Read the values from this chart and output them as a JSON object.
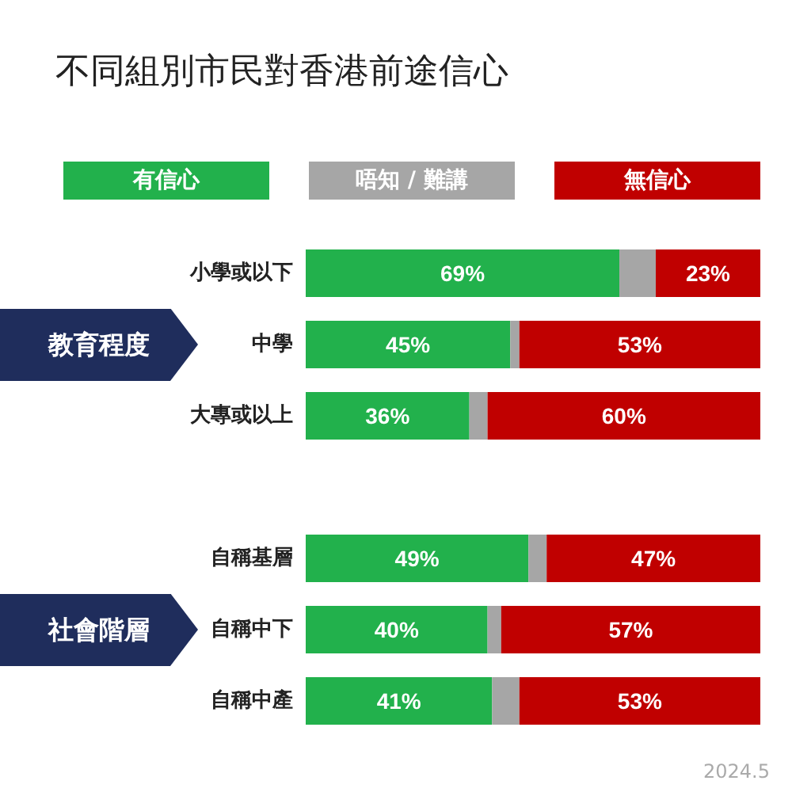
{
  "chart_data": {
    "type": "bar",
    "orientation": "horizontal",
    "stacked": true,
    "title": "不同組別市民對香港前途信心",
    "categories": [
      "小學或以下",
      "中學",
      "大專或以上",
      null,
      "自稱基層",
      "自稱中下",
      "自稱中產"
    ],
    "series": [
      {
        "name": "有信心",
        "color": "#22b14c",
        "values": [
          69,
          45,
          36,
          null,
          49,
          40,
          41
        ],
        "value_labels": [
          "69%",
          "45%",
          "36%",
          null,
          "49%",
          "40%",
          "41%"
        ]
      },
      {
        "name": "唔知 / 難講",
        "color": "#a6a6a6",
        "values": [
          8,
          2,
          4,
          null,
          4,
          3,
          6
        ]
      },
      {
        "name": "無信心",
        "color": "#c00000",
        "values": [
          23,
          53,
          60,
          null,
          47,
          57,
          53
        ],
        "value_labels": [
          "23%",
          "53%",
          "60%",
          null,
          "47%",
          "57%",
          "53%"
        ]
      }
    ],
    "xlim": [
      0,
      100
    ],
    "legend": "top",
    "annotations": [
      "教育程度",
      "社會階層",
      "2024.5"
    ]
  }
}
